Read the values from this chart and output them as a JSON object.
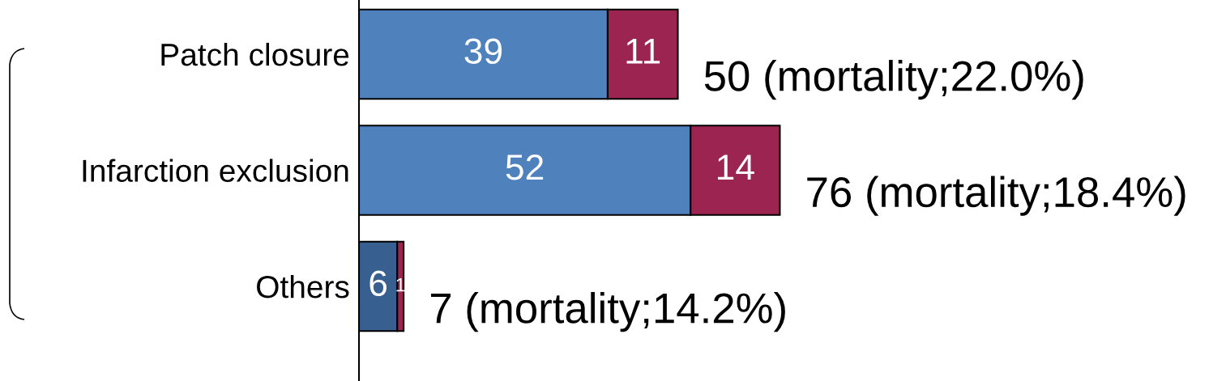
{
  "chart_data": {
    "type": "bar",
    "orientation": "horizontal",
    "stacked": true,
    "data_labels": true,
    "grid": false,
    "legend": false,
    "categories": [
      "Patch closure",
      "Infarction exclusion",
      "Others"
    ],
    "series": [
      {
        "color": "#4f81bd",
        "colors": [
          "#4f81bd",
          "#4f81bd",
          "#375f8f"
        ],
        "values": [
          39,
          52,
          6
        ]
      },
      {
        "color": "#9b2450",
        "values": [
          11,
          14,
          1
        ]
      }
    ],
    "totals": [
      "50 (mortality;22.0%)",
      "76 (mortality;18.4%)",
      "7 (mortality;14.2%)"
    ]
  }
}
